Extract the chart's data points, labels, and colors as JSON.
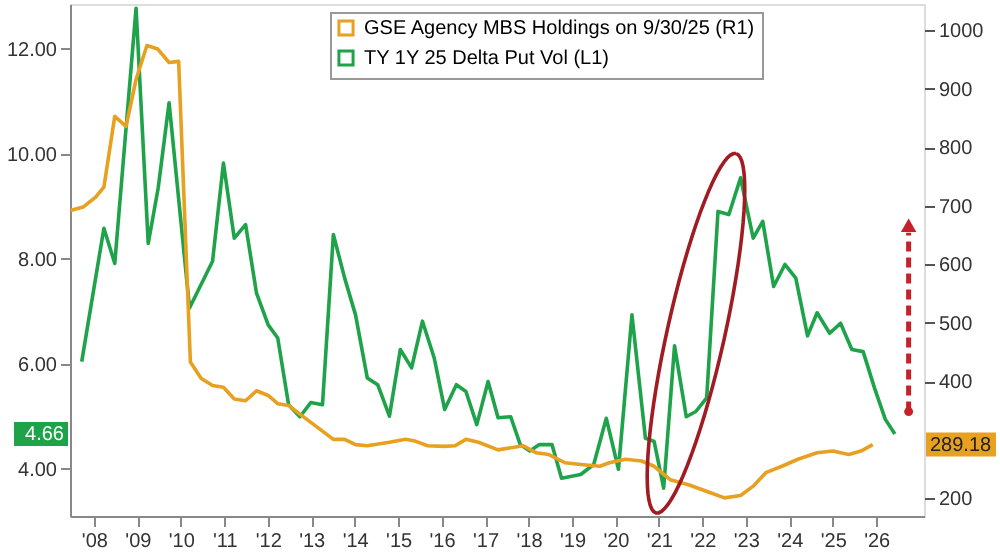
{
  "chart_data": {
    "type": "line",
    "legend": "top",
    "grid": false,
    "xlim": [
      2007.45,
      2027.1
    ],
    "xticks": [
      {
        "value": 2008,
        "label": "'08"
      },
      {
        "value": 2009,
        "label": "'09"
      },
      {
        "value": 2010,
        "label": "'10"
      },
      {
        "value": 2011,
        "label": "'11"
      },
      {
        "value": 2012,
        "label": "'12"
      },
      {
        "value": 2013,
        "label": "'13"
      },
      {
        "value": 2014,
        "label": "'14"
      },
      {
        "value": 2015,
        "label": "'15"
      },
      {
        "value": 2016,
        "label": "'16"
      },
      {
        "value": 2017,
        "label": "'17"
      },
      {
        "value": 2018,
        "label": "'18"
      },
      {
        "value": 2019,
        "label": "'19"
      },
      {
        "value": 2020,
        "label": "'20"
      },
      {
        "value": 2021,
        "label": "'21"
      },
      {
        "value": 2022,
        "label": "'22"
      },
      {
        "value": 2023,
        "label": "'23"
      },
      {
        "value": 2024,
        "label": "'24"
      },
      {
        "value": 2025,
        "label": "'25"
      },
      {
        "value": 2026,
        "label": "'26"
      }
    ],
    "ylim": [
      3.1,
      12.85
    ],
    "yticks": [
      {
        "value": 4,
        "label": "4.00"
      },
      {
        "value": 6,
        "label": "6.00"
      },
      {
        "value": 8,
        "label": "8.00"
      },
      {
        "value": 10,
        "label": "10.00"
      },
      {
        "value": 12,
        "label": "12.00"
      }
    ],
    "y2lim": [
      170,
      1045
    ],
    "y2ticks": [
      200,
      400,
      500,
      600,
      700,
      800,
      900,
      1000
    ],
    "series": [
      {
        "name": "GSE Agency MBS Holdings on 9/30/25 (R1)",
        "color": "#e8a020",
        "axis": "y2",
        "x": [
          2007.46,
          2007.75,
          2008.04,
          2008.23,
          2008.48,
          2008.74,
          2008.97,
          2009.22,
          2009.47,
          2009.73,
          2009.95,
          2010.22,
          2010.47,
          2010.73,
          2010.98,
          2011.23,
          2011.49,
          2011.74,
          2012.01,
          2012.23,
          2012.48,
          2012.74,
          2012.99,
          2013.26,
          2013.51,
          2013.77,
          2014.02,
          2014.29,
          2014.8,
          2015.17,
          2015.39,
          2015.68,
          2016.05,
          2016.31,
          2016.56,
          2016.85,
          2017.3,
          2017.88,
          2018.18,
          2018.47,
          2018.84,
          2019.2,
          2019.64,
          2019.86,
          2020.23,
          2020.6,
          2020.89,
          2021.26,
          2021.7,
          2022.14,
          2022.51,
          2022.88,
          2023.17,
          2023.46,
          2023.83,
          2024.2,
          2024.64,
          2025.0,
          2025.37,
          2025.65,
          2025.92
        ],
        "values": [
          692,
          698,
          715,
          732,
          853,
          836,
          916,
          974,
          968,
          945,
          947,
          433,
          405,
          393,
          390,
          370,
          367,
          384,
          376,
          362,
          359,
          344,
          330,
          315,
          301,
          301,
          292,
          290,
          296,
          301,
          298,
          290,
          289,
          290,
          301,
          296,
          283,
          290,
          278,
          275,
          261,
          258,
          255,
          261,
          267,
          264,
          255,
          232,
          223,
          211,
          201,
          205,
          221,
          244,
          255,
          267,
          278,
          281,
          275,
          281,
          292
        ]
      },
      {
        "name": "TY 1Y 25 Delta Put Vol (L1)",
        "color": "#1fa34a",
        "x": [
          2007.72,
          2008.23,
          2008.48,
          2008.97,
          2009.25,
          2009.48,
          2009.73,
          2010.2,
          2010.73,
          2010.98,
          2011.23,
          2011.49,
          2011.74,
          2012.01,
          2012.23,
          2012.48,
          2012.74,
          2012.99,
          2013.26,
          2013.51,
          2013.77,
          2014.02,
          2014.29,
          2014.53,
          2014.8,
          2015.05,
          2015.31,
          2015.56,
          2015.83,
          2016.07,
          2016.34,
          2016.56,
          2016.81,
          2017.07,
          2017.3,
          2017.59,
          2017.81,
          2018.03,
          2018.25,
          2018.54,
          2018.76,
          2019.2,
          2019.5,
          2019.79,
          2020.07,
          2020.38,
          2020.69,
          2020.89,
          2021.11,
          2021.36,
          2021.63,
          2021.85,
          2022.1,
          2022.36,
          2022.61,
          2022.88,
          2023.17,
          2023.39,
          2023.64,
          2023.9,
          2024.15,
          2024.42,
          2024.64,
          2024.93,
          2025.18,
          2025.44,
          2025.7,
          2025.96,
          2026.21,
          2026.43
        ],
        "values": [
          6.04,
          8.58,
          7.91,
          12.77,
          8.29,
          9.35,
          10.97,
          7.06,
          7.95,
          9.82,
          8.39,
          8.65,
          7.35,
          6.74,
          6.49,
          5.22,
          4.99,
          5.26,
          5.22,
          8.46,
          7.63,
          6.93,
          5.73,
          5.6,
          5.0,
          6.27,
          5.92,
          6.81,
          6.11,
          5.13,
          5.6,
          5.47,
          4.84,
          5.66,
          4.97,
          4.99,
          4.46,
          4.34,
          4.46,
          4.46,
          3.82,
          3.89,
          4.08,
          4.96,
          3.99,
          6.93,
          4.58,
          4.52,
          3.63,
          6.34,
          4.99,
          5.09,
          5.35,
          8.9,
          8.84,
          9.54,
          8.39,
          8.71,
          7.47,
          7.89,
          7.63,
          6.53,
          6.97,
          6.58,
          6.77,
          6.27,
          6.23,
          5.54,
          4.94,
          4.66
        ]
      }
    ],
    "annotations": [
      "289.18",
      "4.66"
    ]
  }
}
